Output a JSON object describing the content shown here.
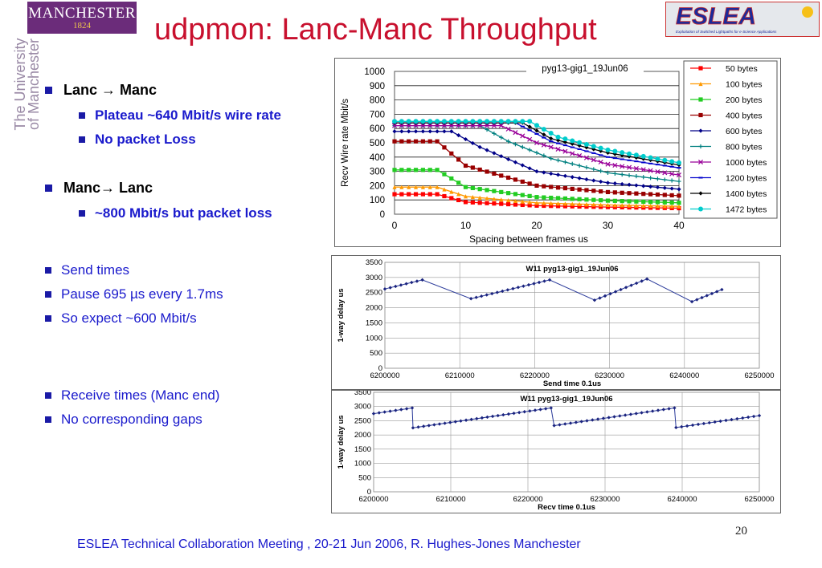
{
  "header": {
    "logo_main": "MANCHESTER",
    "logo_year": "1824",
    "side_line1": "The University",
    "side_line2": "of Manchester",
    "title": "udpmon: Lanc-Manc Throughput",
    "logo_right": "ESLEA",
    "logo_right_sub": "Exploitation of Switched Lightpaths for e-Science Applications"
  },
  "bullets": {
    "lanc_manc": "Lanc → Manc",
    "plateau": "Plateau ~640 Mbit/s wire rate",
    "no_loss": "No packet Loss",
    "manc_lanc": "Manc→ Lanc",
    "loss": "~800 Mbit/s but packet loss",
    "send_times": "Send times",
    "pause": "Pause 695 µs every 1.7ms",
    "expect": "So expect ~600 Mbit/s",
    "receive": "Receive times (Manc end)",
    "no_gaps": "No corresponding gaps"
  },
  "chart_data": [
    {
      "type": "line",
      "title": "pyg13-gig1_19Jun06",
      "xlabel": "Spacing between frames us",
      "ylabel": "Recv Wire rate Mbit/s",
      "xlim": [
        0,
        40
      ],
      "ylim": [
        0,
        1000
      ],
      "xticks": [
        "0",
        "10",
        "20",
        "30",
        "40"
      ],
      "yticks": [
        "0",
        "100",
        "200",
        "300",
        "400",
        "500",
        "600",
        "700",
        "800",
        "900",
        "1000"
      ],
      "legend_position": "right",
      "series": [
        {
          "name": "50 bytes",
          "color": "#ff0000",
          "marker": "square",
          "points": [
            [
              0,
              140
            ],
            [
              6,
              140
            ],
            [
              10,
              85
            ],
            [
              20,
              60
            ],
            [
              30,
              50
            ],
            [
              40,
              42
            ]
          ]
        },
        {
          "name": "100 bytes",
          "color": "#ff9900",
          "marker": "triangle",
          "points": [
            [
              0,
              190
            ],
            [
              6,
              190
            ],
            [
              10,
              125
            ],
            [
              20,
              80
            ],
            [
              30,
              65
            ],
            [
              40,
              55
            ]
          ]
        },
        {
          "name": "200 bytes",
          "color": "#22cc22",
          "marker": "square",
          "points": [
            [
              0,
              310
            ],
            [
              6,
              310
            ],
            [
              10,
              190
            ],
            [
              20,
              120
            ],
            [
              30,
              95
            ],
            [
              40,
              80
            ]
          ]
        },
        {
          "name": "400 bytes",
          "color": "#990000",
          "marker": "square",
          "points": [
            [
              0,
              510
            ],
            [
              6,
              510
            ],
            [
              10,
              340
            ],
            [
              20,
              200
            ],
            [
              30,
              155
            ],
            [
              40,
              130
            ]
          ]
        },
        {
          "name": "600 bytes",
          "color": "#000088",
          "marker": "diamond",
          "points": [
            [
              0,
              580
            ],
            [
              8,
              580
            ],
            [
              12,
              470
            ],
            [
              20,
              300
            ],
            [
              30,
              220
            ],
            [
              40,
              175
            ]
          ]
        },
        {
          "name": "800 bytes",
          "color": "#008080",
          "marker": "plus",
          "points": [
            [
              0,
              620
            ],
            [
              12,
              620
            ],
            [
              16,
              510
            ],
            [
              22,
              390
            ],
            [
              30,
              290
            ],
            [
              40,
              230
            ]
          ]
        },
        {
          "name": "1000 bytes",
          "color": "#990099",
          "marker": "x",
          "points": [
            [
              0,
              620
            ],
            [
              15,
              620
            ],
            [
              20,
              500
            ],
            [
              30,
              350
            ],
            [
              40,
              275
            ]
          ]
        },
        {
          "name": "1200 bytes",
          "color": "#0000cc",
          "marker": "dash",
          "points": [
            [
              0,
              640
            ],
            [
              17,
              640
            ],
            [
              22,
              510
            ],
            [
              30,
              400
            ],
            [
              40,
              325
            ]
          ]
        },
        {
          "name": "1400 bytes",
          "color": "#000000",
          "marker": "diamond",
          "points": [
            [
              0,
              640
            ],
            [
              18,
              640
            ],
            [
              22,
              530
            ],
            [
              30,
              430
            ],
            [
              40,
              345
            ]
          ]
        },
        {
          "name": "1472 bytes",
          "color": "#00cccc",
          "marker": "circle",
          "points": [
            [
              0,
              650
            ],
            [
              19,
              650
            ],
            [
              23,
              540
            ],
            [
              30,
              450
            ],
            [
              40,
              360
            ]
          ]
        }
      ]
    },
    {
      "type": "scatter",
      "title": "W11 pyg13-gig1_19Jun06",
      "xlabel": "Send time 0.1us",
      "ylabel": "1-way delay us",
      "xlim": [
        6200000,
        6250000
      ],
      "ylim": [
        0,
        3500
      ],
      "xticks": [
        "6200000",
        "6210000",
        "6220000",
        "6230000",
        "6240000",
        "6250000"
      ],
      "yticks": [
        "0",
        "500",
        "1000",
        "1500",
        "2000",
        "2500",
        "3000",
        "3500"
      ],
      "grid": true,
      "sawtooth": [
        [
          6200000,
          2620
        ],
        [
          6205000,
          2920
        ],
        [
          6211500,
          2300
        ],
        [
          6222000,
          2920
        ],
        [
          6228000,
          2250
        ],
        [
          6235000,
          2950
        ],
        [
          6241000,
          2200
        ],
        [
          6245000,
          2600
        ]
      ]
    },
    {
      "type": "scatter",
      "title": "W11 pyg13-gig1_19Jun06",
      "xlabel": "Recv time 0.1us",
      "ylabel": "1-way delay us",
      "xlim": [
        6200000,
        6250000
      ],
      "ylim": [
        0,
        3500
      ],
      "xticks": [
        "6200000",
        "6210000",
        "6220000",
        "6230000",
        "6240000",
        "6250000"
      ],
      "yticks": [
        "0",
        "500",
        "1000",
        "1500",
        "2000",
        "2500",
        "3000",
        "3500"
      ],
      "grid": true,
      "sawtooth": [
        [
          6200000,
          2750
        ],
        [
          6205000,
          2950
        ],
        [
          6205100,
          2250
        ],
        [
          6223000,
          2950
        ],
        [
          6223400,
          2330
        ],
        [
          6239000,
          2950
        ],
        [
          6239200,
          2260
        ],
        [
          6250000,
          2680
        ]
      ]
    }
  ],
  "footer": {
    "text": "ESLEA Technical Collaboration Meeting , 20-21 Jun 2006,  R. Hughes-Jones  Manchester",
    "page": "20"
  }
}
